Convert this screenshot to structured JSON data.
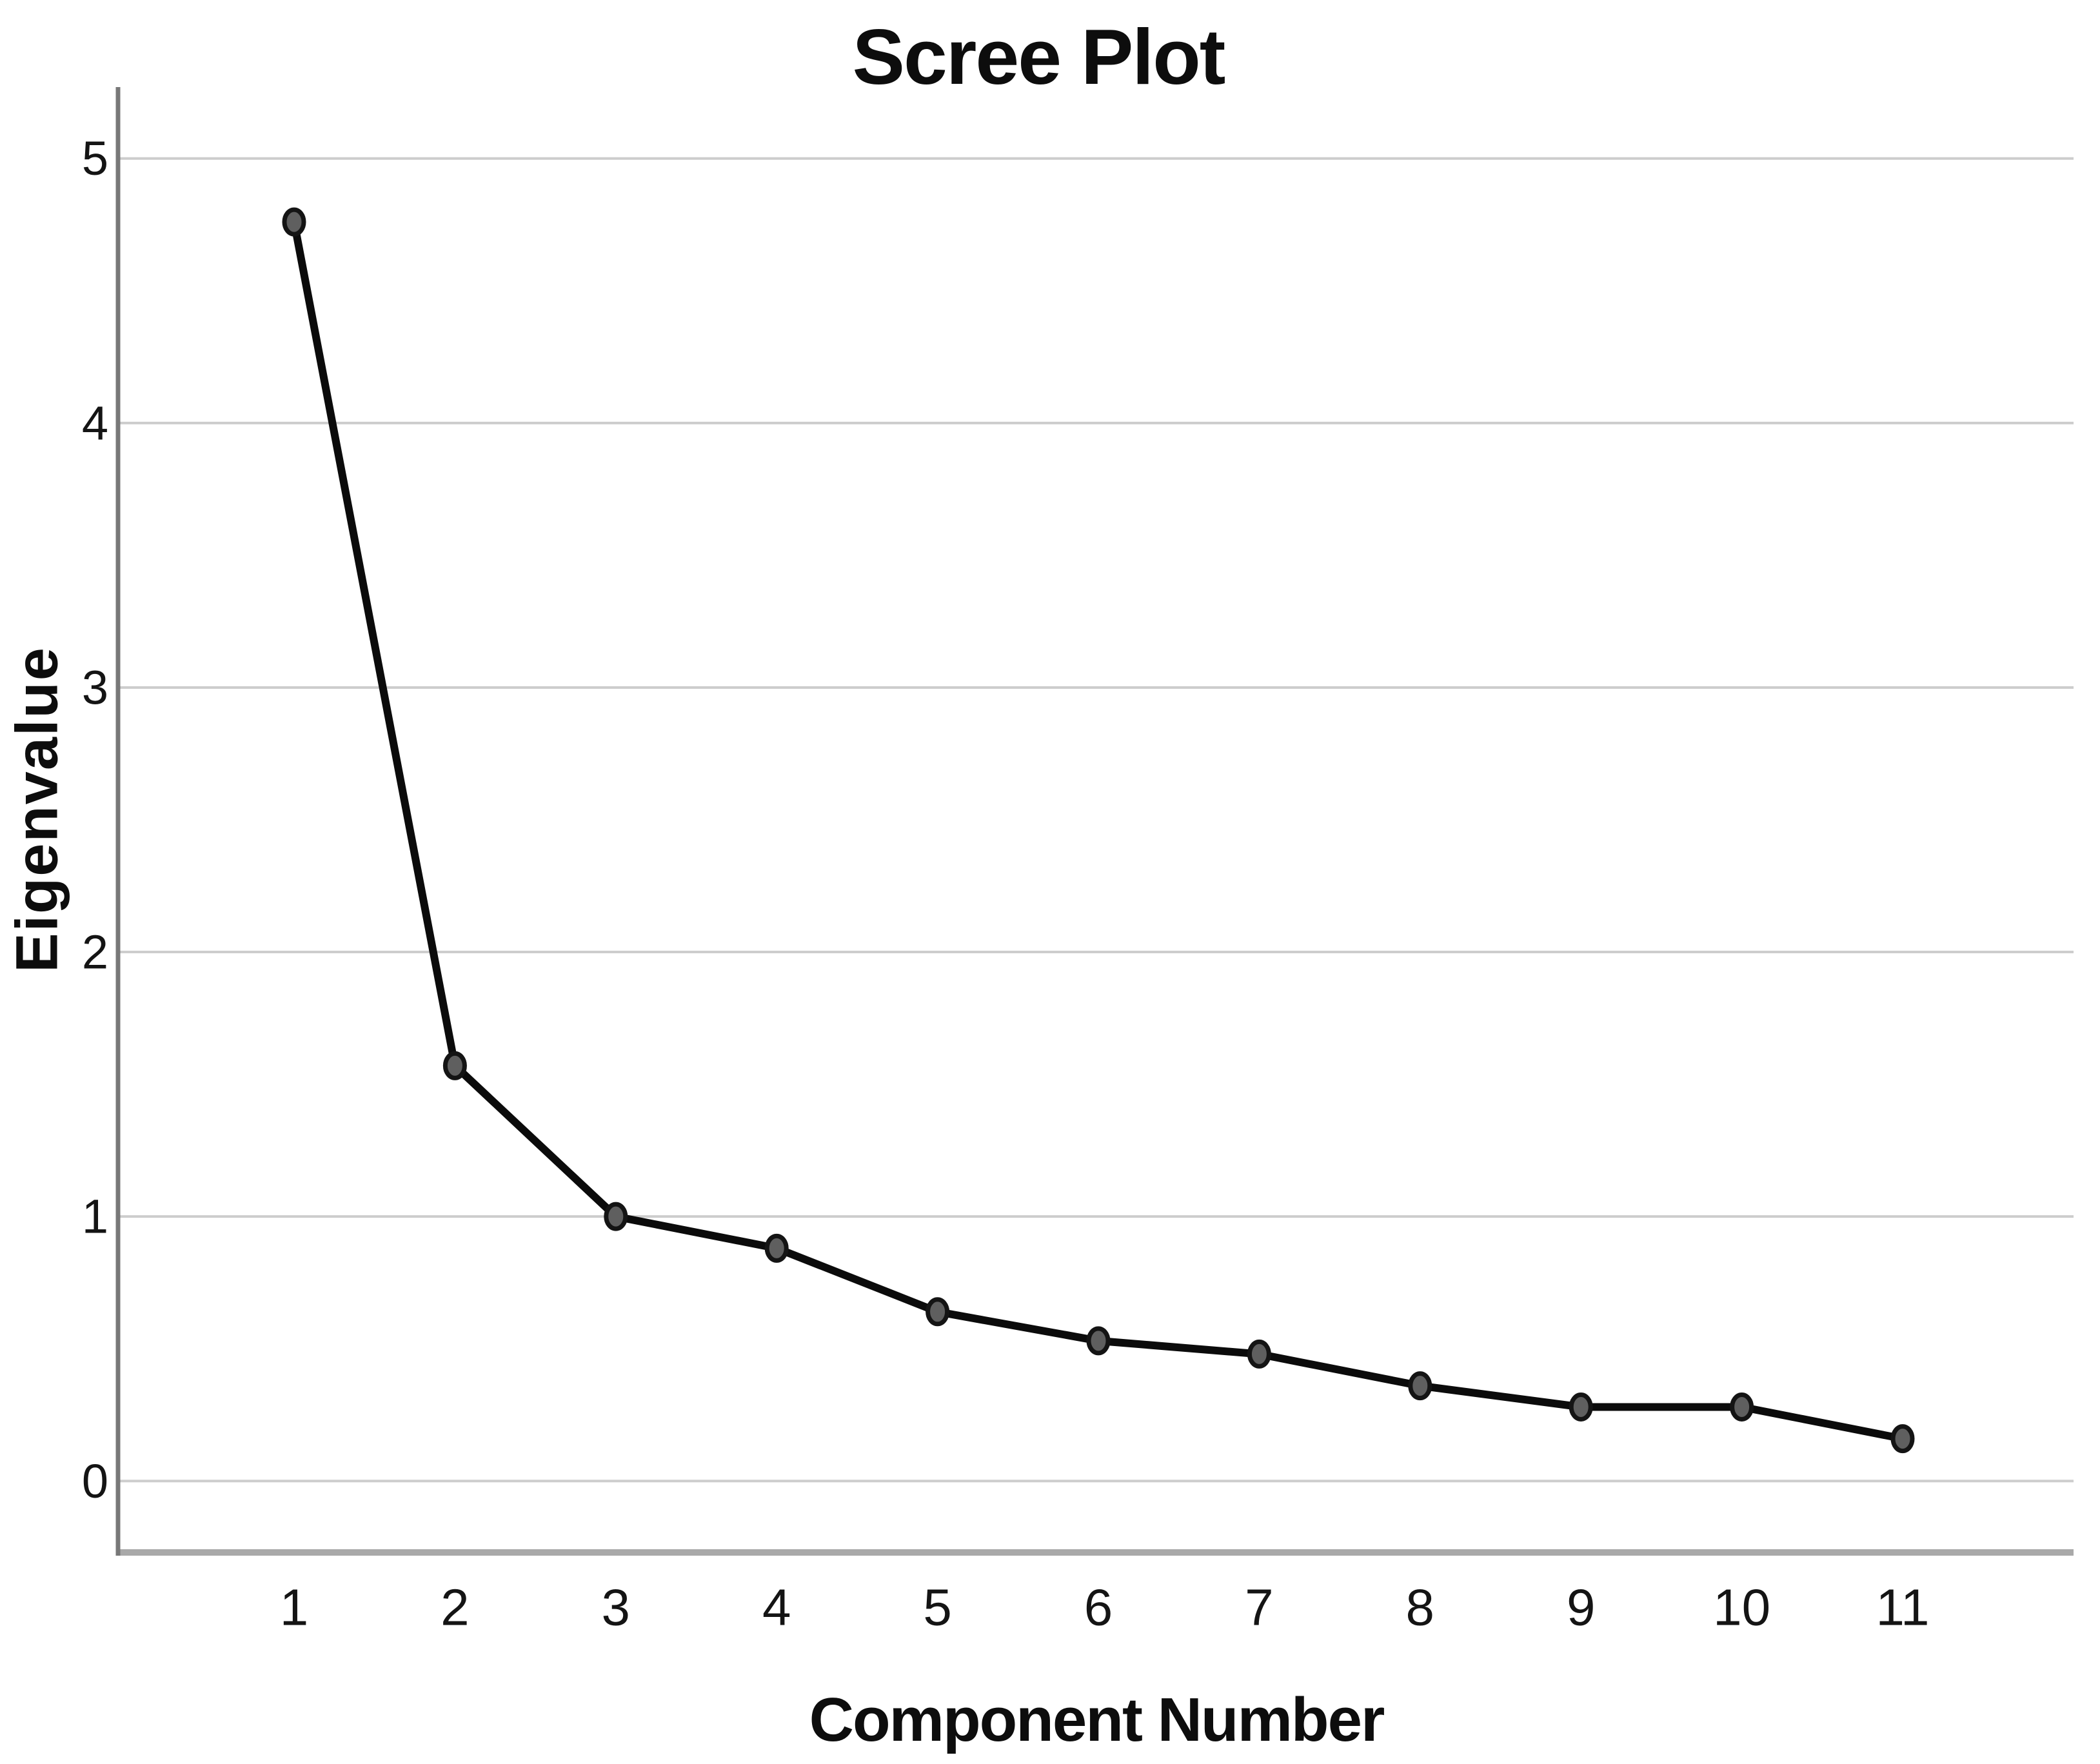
{
  "page": {
    "background": "#ffffff"
  },
  "chart_data": {
    "type": "line",
    "title": "Scree Plot",
    "xlabel": "Component Number",
    "ylabel": "Eigenvalue",
    "x": [
      1,
      2,
      3,
      4,
      5,
      6,
      7,
      8,
      9,
      10,
      11
    ],
    "series": [
      {
        "name": "Eigenvalue",
        "values": [
          4.76,
          1.57,
          1.0,
          0.88,
          0.64,
          0.53,
          0.48,
          0.36,
          0.28,
          0.28,
          0.16
        ]
      }
    ],
    "x_tick_labels": [
      "1",
      "2",
      "3",
      "4",
      "5",
      "6",
      "7",
      "8",
      "9",
      "10",
      "11"
    ],
    "y_ticks": [
      0,
      1,
      2,
      3,
      4,
      5
    ],
    "y_tick_labels": [
      "0",
      "1",
      "2",
      "3",
      "4",
      "5"
    ],
    "ylim": [
      -0.27,
      5.27
    ],
    "grid": "horizontal-only",
    "legend": "none",
    "marker": "filled-circle",
    "colors": {
      "line": "#0b0b0b",
      "marker_fill": "#5f5f5f",
      "marker_stroke": "#141414",
      "gridline": "#cdcdcd",
      "y_axis_line": "#787878",
      "x_baseline": "#a9a9a9",
      "text": "#0d0d0d",
      "background": "#ffffff"
    }
  }
}
